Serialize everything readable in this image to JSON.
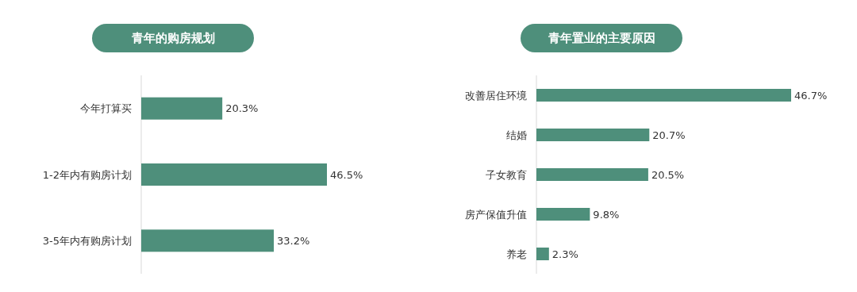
{
  "chart_data": [
    {
      "type": "bar",
      "orientation": "horizontal",
      "title": "青年的购房规划",
      "categories": [
        "今年打算买",
        "1-2年内有购房计划",
        "3-5年内有购房计划"
      ],
      "values": [
        20.3,
        46.5,
        33.2
      ],
      "value_labels": [
        "20.3%",
        "46.5%",
        "33.2%"
      ],
      "color": "#4e8f7b"
    },
    {
      "type": "bar",
      "orientation": "horizontal",
      "title": "青年置业的主要原因",
      "categories": [
        "改善居住环境",
        "结婚",
        "子女教育",
        "房产保值升值",
        "养老"
      ],
      "values": [
        46.7,
        20.7,
        20.5,
        9.8,
        2.3
      ],
      "value_labels": [
        "46.7%",
        "20.7%",
        "20.5%",
        "9.8%",
        "2.3%"
      ],
      "color": "#4e8f7b"
    }
  ]
}
